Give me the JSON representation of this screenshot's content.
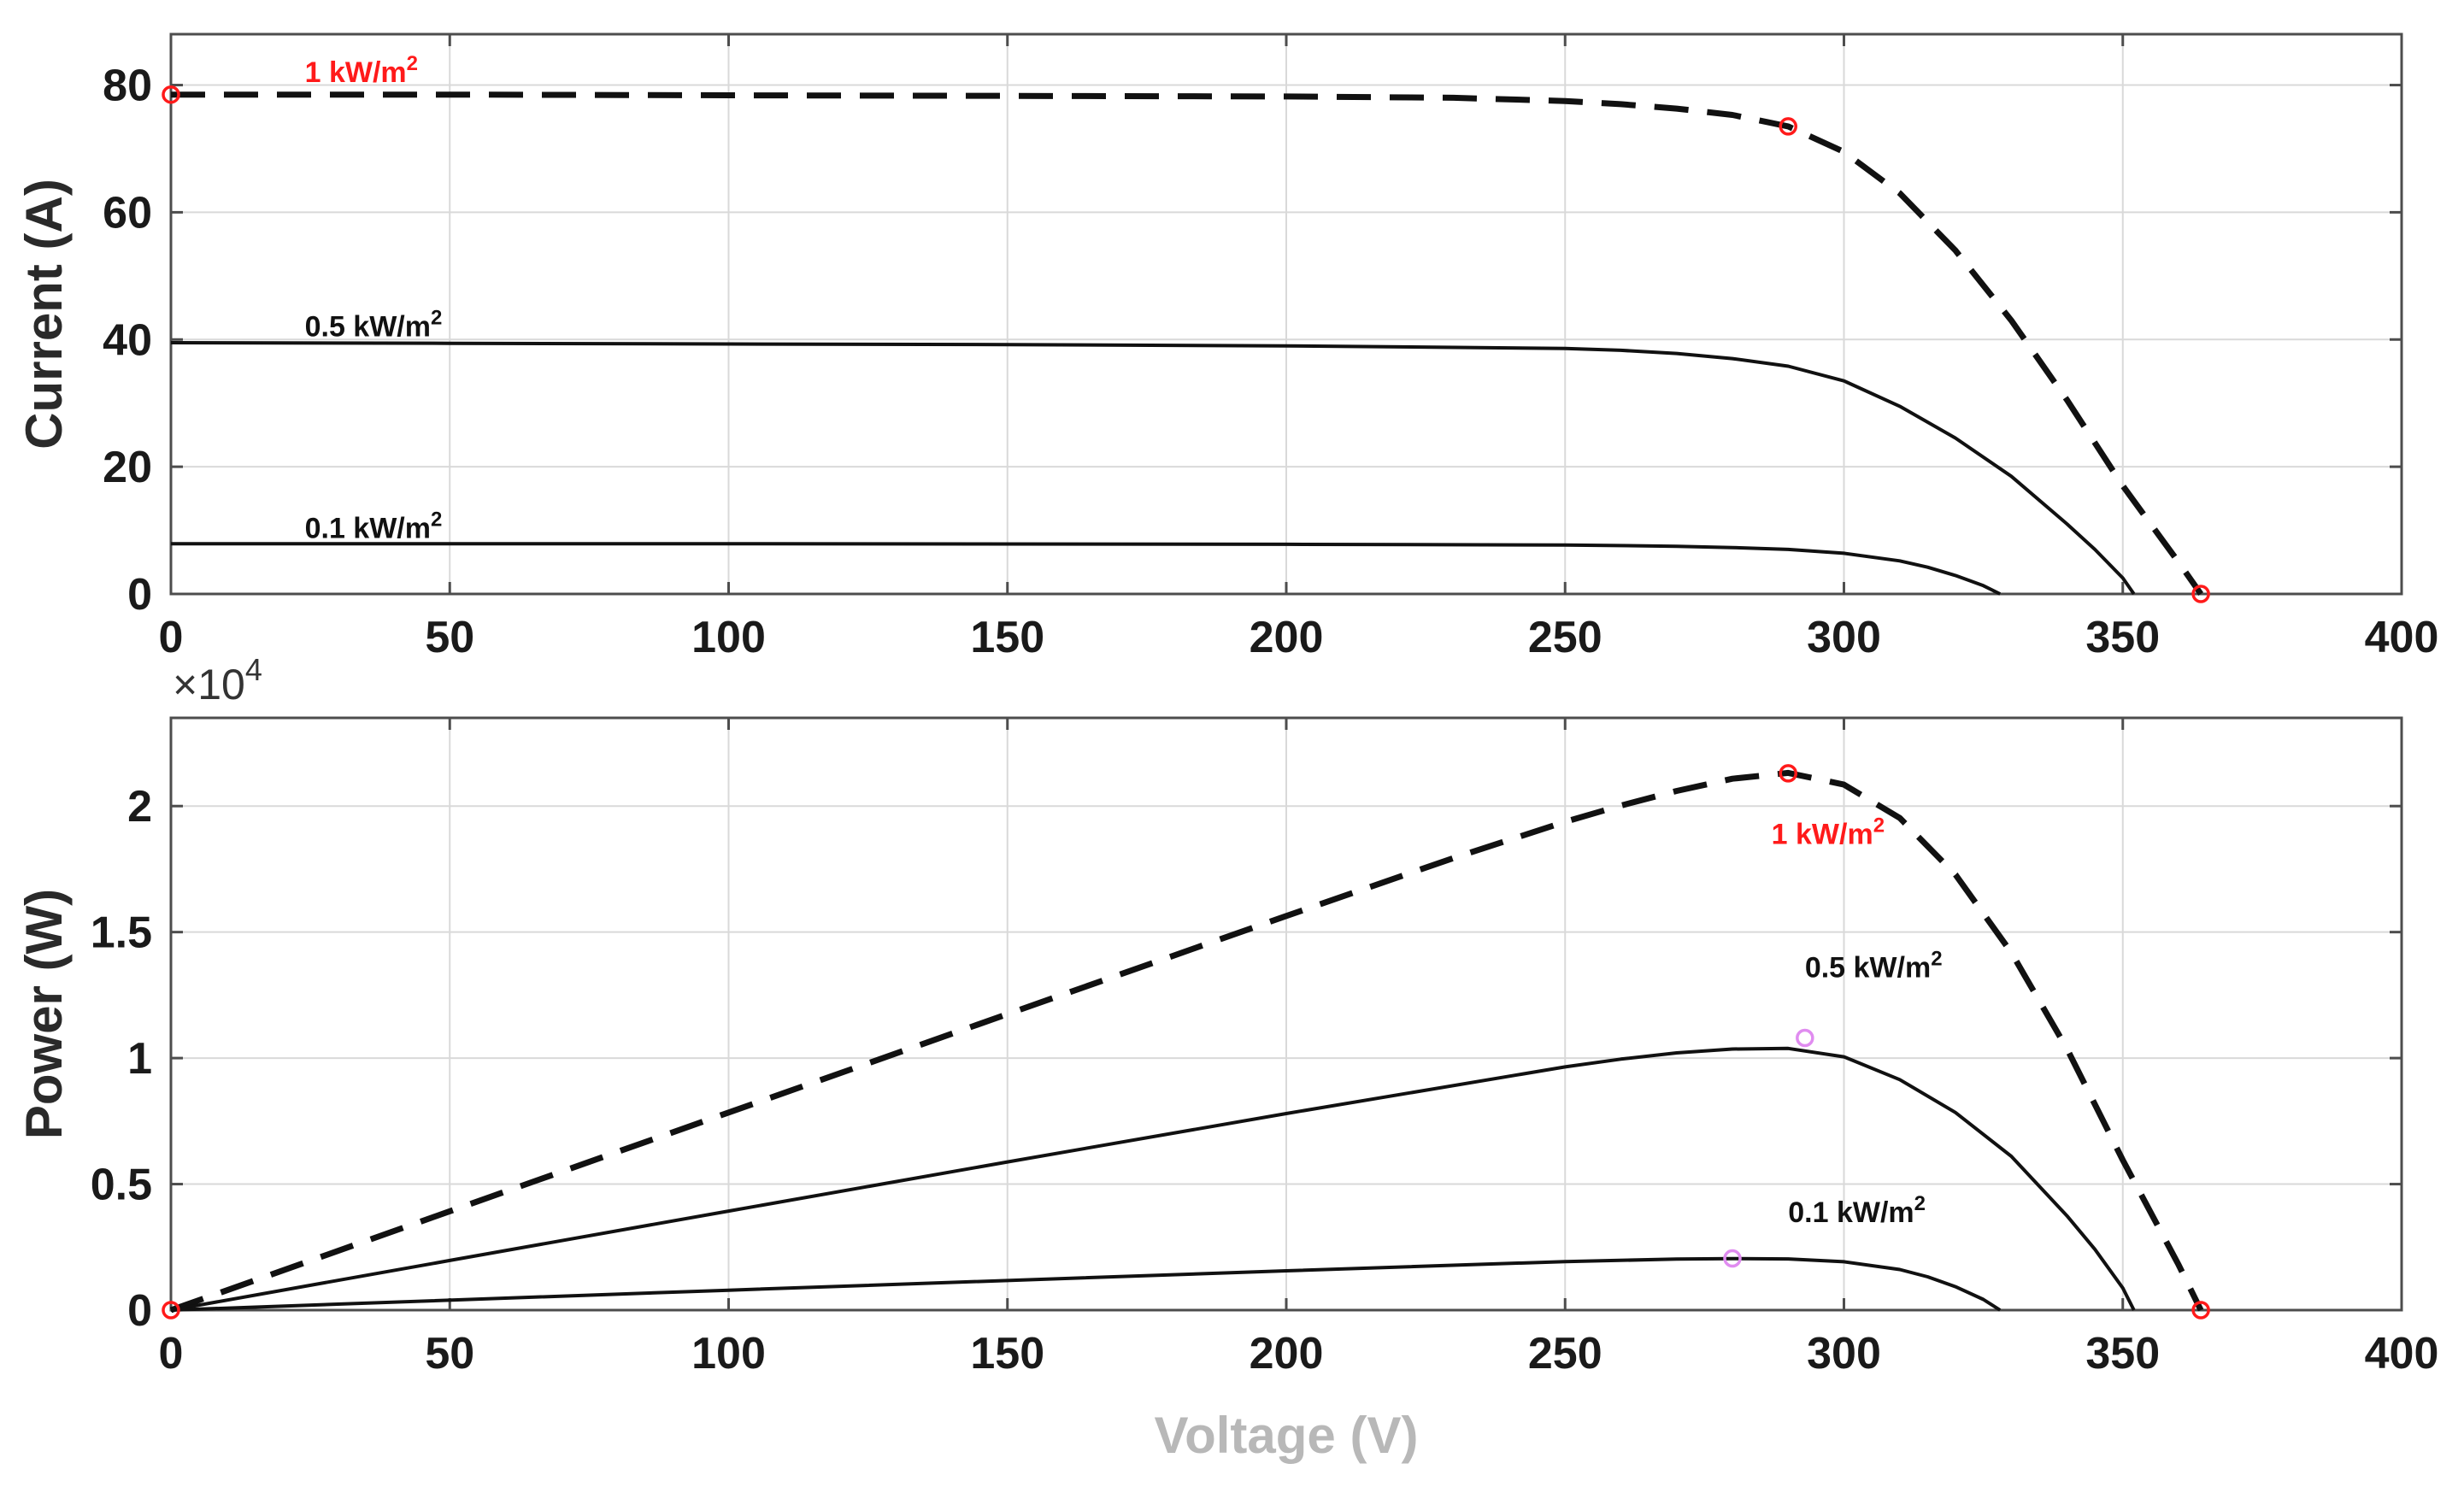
{
  "colors": {
    "curve": "#111111",
    "highlight": "#ff1a1a",
    "mpp_marker": "#e08cf0",
    "grid": "#d9d9d9",
    "axes": "#4d4d4d",
    "xlabel_faded": "#b8b8b8"
  },
  "chart_data": [
    {
      "type": "line",
      "title": "",
      "xlabel": "",
      "ylabel": "Current (A)",
      "xlim": [
        0,
        400
      ],
      "ylim": [
        0,
        88
      ],
      "xticks": [
        "0",
        "50",
        "100",
        "150",
        "200",
        "250",
        "300",
        "350",
        "400"
      ],
      "yticks": [
        "0",
        "20",
        "40",
        "60",
        "80"
      ],
      "grid": true,
      "series": [
        {
          "name": "1 kW/m2",
          "style": "dashed",
          "x": [
            0,
            50,
            100,
            150,
            200,
            230,
            250,
            260,
            270,
            280,
            290,
            300,
            310,
            320,
            330,
            340,
            350,
            360,
            364
          ],
          "y": [
            78.5,
            78.5,
            78.4,
            78.3,
            78.2,
            78.0,
            77.5,
            77.0,
            76.3,
            75.3,
            73.5,
            69.5,
            63.0,
            54.0,
            43.0,
            30.5,
            17.0,
            5.0,
            0
          ]
        },
        {
          "name": "0.5 kW/m2",
          "style": "solid",
          "x": [
            0,
            50,
            100,
            150,
            200,
            250,
            260,
            270,
            280,
            290,
            300,
            310,
            320,
            330,
            340,
            345,
            350,
            352
          ],
          "y": [
            39.5,
            39.4,
            39.3,
            39.2,
            39.0,
            38.6,
            38.3,
            37.8,
            37.0,
            35.8,
            33.5,
            29.5,
            24.5,
            18.5,
            11.0,
            7.0,
            2.5,
            0
          ]
        },
        {
          "name": "0.1 kW/m2",
          "style": "solid",
          "x": [
            0,
            100,
            200,
            250,
            270,
            280,
            290,
            300,
            310,
            315,
            320,
            325,
            328
          ],
          "y": [
            7.9,
            7.9,
            7.8,
            7.7,
            7.5,
            7.3,
            7.0,
            6.4,
            5.2,
            4.2,
            2.9,
            1.3,
            0
          ]
        }
      ],
      "markers": [
        {
          "x": 0,
          "y": 78.5,
          "color": "highlight"
        },
        {
          "x": 290,
          "y": 73.5,
          "color": "highlight"
        },
        {
          "x": 364,
          "y": 0,
          "color": "highlight"
        }
      ],
      "annotations": [
        {
          "text": "1 kW/m",
          "sup": "2",
          "x": 24,
          "y": 80.5,
          "color": "highlight"
        },
        {
          "text": "0.5 kW/m",
          "sup": "2",
          "x": 24,
          "y": 40.5,
          "color": "curve"
        },
        {
          "text": "0.1 kW/m",
          "sup": "2",
          "x": 24,
          "y": 8.8,
          "color": "curve"
        }
      ]
    },
    {
      "type": "line",
      "title": "",
      "xlabel": "Voltage (V)",
      "ylabel": "Power (W)",
      "y_exponent_base": "×10",
      "y_exponent_power": "4",
      "xlim": [
        0,
        400
      ],
      "ylim": [
        0,
        2.35
      ],
      "xticks": [
        "0",
        "50",
        "100",
        "150",
        "200",
        "250",
        "300",
        "350",
        "400"
      ],
      "yticks": [
        "0",
        "0.5",
        "1",
        "1.5",
        "2"
      ],
      "grid": true,
      "series": [
        {
          "name": "1 kW/m2",
          "style": "dashed",
          "x": [
            0,
            50,
            100,
            150,
            200,
            230,
            250,
            260,
            270,
            280,
            290,
            300,
            310,
            320,
            330,
            340,
            350,
            360,
            364
          ],
          "y": [
            0,
            0.3925,
            0.784,
            1.1745,
            1.564,
            1.794,
            1.9375,
            2.002,
            2.0601,
            2.1084,
            2.1315,
            2.085,
            1.953,
            1.728,
            1.419,
            1.037,
            0.595,
            0.18,
            0
          ]
        },
        {
          "name": "0.5 kW/m2",
          "style": "solid",
          "x": [
            0,
            50,
            100,
            150,
            200,
            250,
            260,
            270,
            280,
            290,
            300,
            310,
            320,
            330,
            340,
            345,
            350,
            352
          ],
          "y": [
            0,
            0.197,
            0.393,
            0.588,
            0.78,
            0.965,
            0.9958,
            1.0206,
            1.036,
            1.0382,
            1.005,
            0.9145,
            0.784,
            0.6105,
            0.374,
            0.2415,
            0.0875,
            0
          ]
        },
        {
          "name": "0.1 kW/m2",
          "style": "solid",
          "x": [
            0,
            100,
            200,
            250,
            270,
            280,
            290,
            300,
            310,
            315,
            320,
            325,
            328
          ],
          "y": [
            0,
            0.079,
            0.156,
            0.1925,
            0.2025,
            0.2044,
            0.203,
            0.192,
            0.1612,
            0.1323,
            0.0928,
            0.0423,
            0
          ]
        }
      ],
      "markers": [
        {
          "x": 0,
          "y": 0,
          "color": "highlight"
        },
        {
          "x": 290,
          "y": 2.13,
          "color": "highlight"
        },
        {
          "x": 364,
          "y": 0,
          "color": "highlight"
        },
        {
          "x": 293,
          "y": 1.08,
          "color": "mpp_marker"
        },
        {
          "x": 280,
          "y": 0.205,
          "color": "mpp_marker"
        }
      ],
      "annotations": [
        {
          "text": "1 kW/m",
          "sup": "2",
          "x": 287,
          "y": 1.85,
          "color": "highlight"
        },
        {
          "text": "0.5 kW/m",
          "sup": "2",
          "x": 293,
          "y": 1.32,
          "color": "curve"
        },
        {
          "text": "0.1 kW/m",
          "sup": "2",
          "x": 290,
          "y": 0.35,
          "color": "curve"
        }
      ]
    }
  ]
}
